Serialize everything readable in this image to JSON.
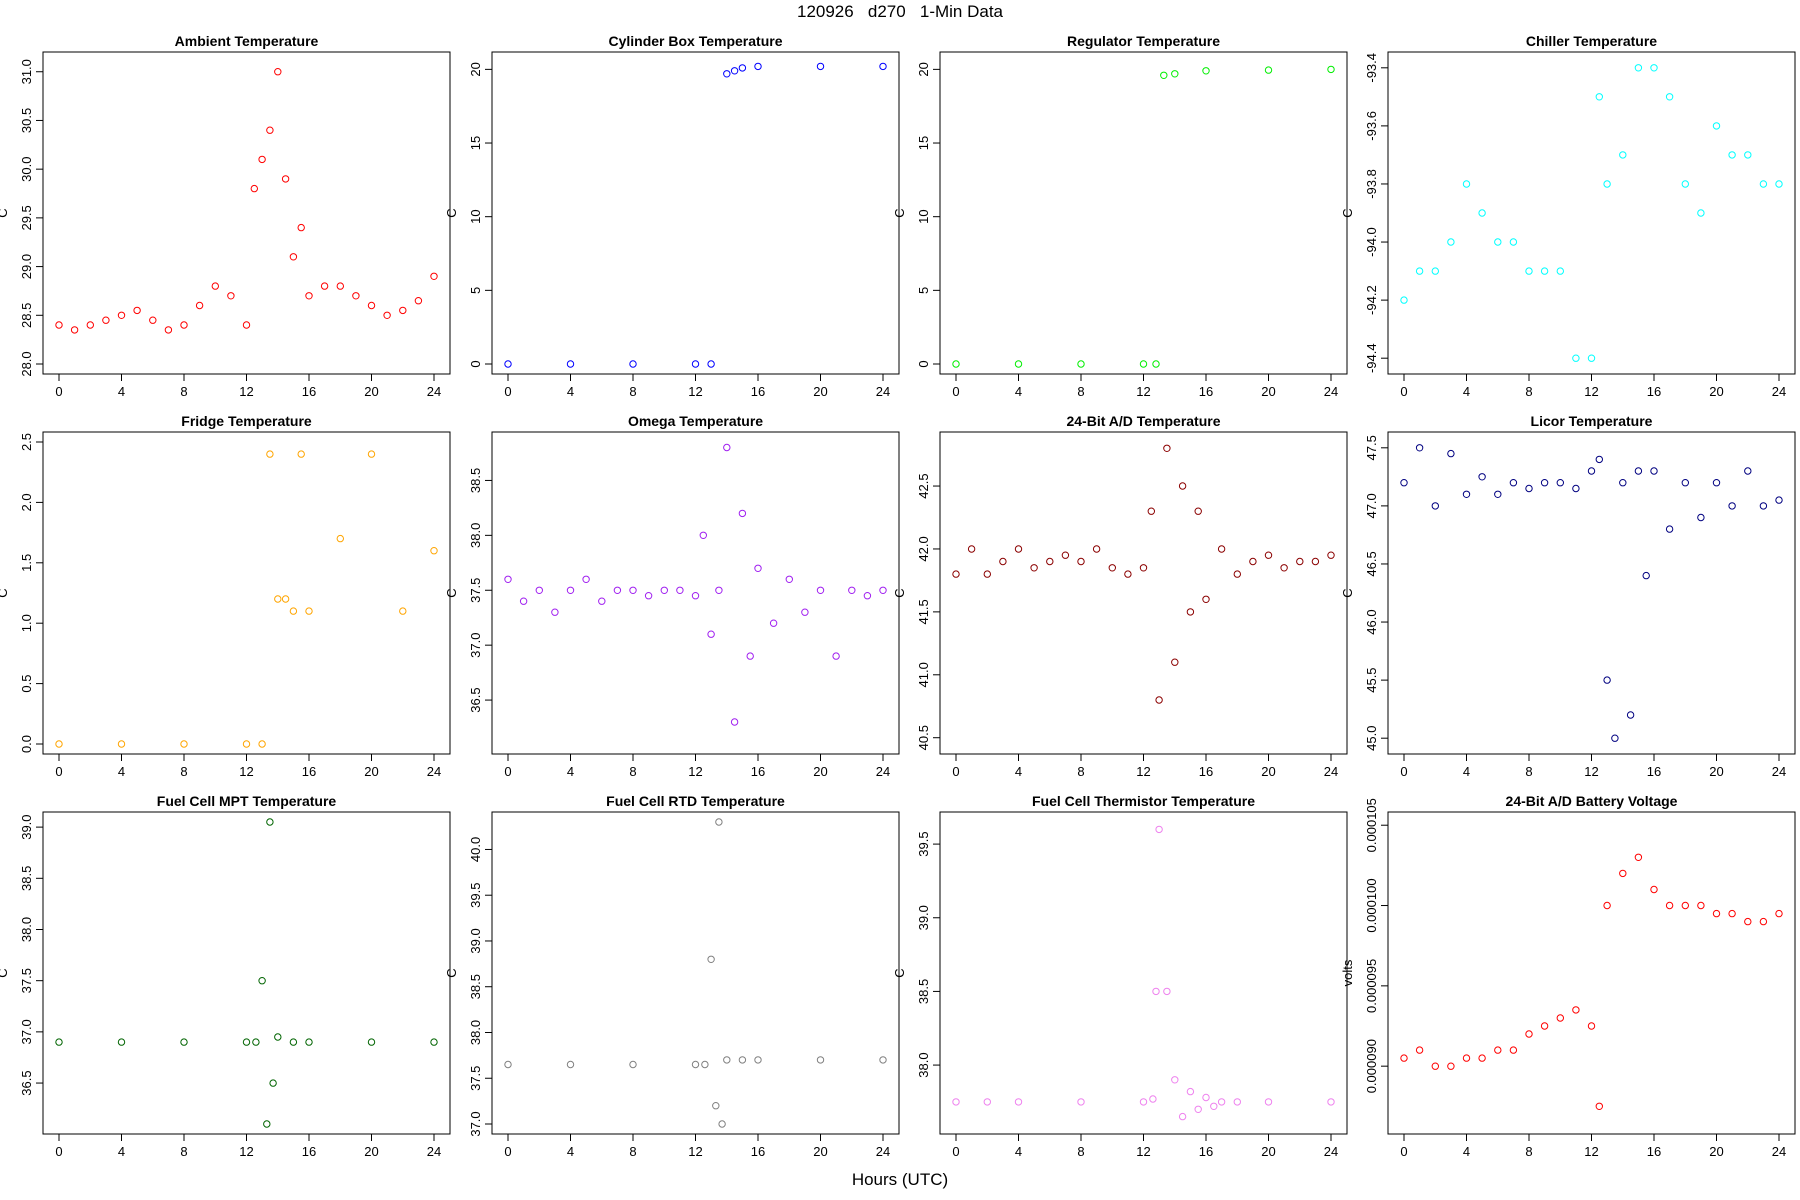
{
  "figure": {
    "title": "120926   d270   1-Min Data",
    "xlabel": "Hours (UTC)"
  },
  "chart_data": [
    {
      "type": "scatter",
      "title": "Ambient Temperature",
      "ylabel": "C",
      "color": "#ff0000",
      "xlim": [
        0,
        24
      ],
      "ylim": [
        28.0,
        31.1
      ],
      "xticks": [
        "0",
        "4",
        "8",
        "12",
        "16",
        "20",
        "24"
      ],
      "yticks": [
        "28.0",
        "28.5",
        "29.0",
        "29.5",
        "30.0",
        "30.5",
        "31.0"
      ],
      "x": [
        0,
        1,
        2,
        3,
        4,
        5,
        6,
        7,
        8,
        9,
        10,
        11,
        12,
        12.5,
        13,
        13.5,
        14,
        14.5,
        15,
        15.5,
        16,
        17,
        18,
        19,
        20,
        21,
        22,
        23,
        24
      ],
      "y": [
        28.4,
        28.35,
        28.4,
        28.45,
        28.5,
        28.55,
        28.45,
        28.35,
        28.4,
        28.6,
        28.8,
        28.7,
        28.4,
        29.8,
        30.1,
        30.4,
        31.0,
        29.9,
        29.1,
        29.4,
        28.7,
        28.8,
        28.8,
        28.7,
        28.6,
        28.5,
        28.55,
        28.65,
        28.9
      ]
    },
    {
      "type": "scatter",
      "title": "Cylinder Box Temperature",
      "ylabel": "C",
      "color": "#0000ff",
      "xlim": [
        0,
        24
      ],
      "ylim": [
        0,
        20.5
      ],
      "xticks": [
        "0",
        "4",
        "8",
        "12",
        "16",
        "20",
        "24"
      ],
      "yticks": [
        "0",
        "5",
        "10",
        "15",
        "20"
      ],
      "x": [
        0,
        4,
        8,
        12,
        13,
        14,
        14.5,
        15,
        16,
        20,
        24
      ],
      "y": [
        0,
        0,
        0,
        0,
        0,
        19.7,
        19.9,
        20.1,
        20.2,
        20.2,
        20.2
      ]
    },
    {
      "type": "scatter",
      "title": "Regulator Temperature",
      "ylabel": "C",
      "color": "#00ee00",
      "xlim": [
        0,
        24
      ],
      "ylim": [
        0,
        20.5
      ],
      "xticks": [
        "0",
        "4",
        "8",
        "12",
        "16",
        "20",
        "24"
      ],
      "yticks": [
        "0",
        "5",
        "10",
        "15",
        "20"
      ],
      "x": [
        0,
        4,
        8,
        12,
        12.8,
        13.3,
        14,
        16,
        20,
        24
      ],
      "y": [
        0,
        0,
        0,
        0,
        0,
        19.6,
        19.7,
        19.9,
        19.95,
        20.0
      ]
    },
    {
      "type": "scatter",
      "title": "Chiller Temperature",
      "ylabel": "C",
      "color": "#00ffff",
      "xlim": [
        0,
        24
      ],
      "ylim": [
        -94.42,
        -93.38
      ],
      "xticks": [
        "0",
        "4",
        "8",
        "12",
        "16",
        "20",
        "24"
      ],
      "yticks": [
        "-94.4",
        "-94.2",
        "-94.0",
        "-93.8",
        "-93.6",
        "-93.4"
      ],
      "x": [
        0,
        1,
        2,
        3,
        4,
        5,
        6,
        7,
        8,
        9,
        10,
        11,
        12,
        12.5,
        13,
        14,
        15,
        16,
        17,
        18,
        19,
        20,
        21,
        22,
        23,
        24
      ],
      "y": [
        -94.2,
        -94.1,
        -94.1,
        -94.0,
        -93.8,
        -93.9,
        -94.0,
        -94.0,
        -94.1,
        -94.1,
        -94.1,
        -94.4,
        -94.4,
        -93.5,
        -93.8,
        -93.7,
        -93.4,
        -93.4,
        -93.5,
        -93.8,
        -93.9,
        -93.6,
        -93.7,
        -93.7,
        -93.8,
        -93.8
      ]
    },
    {
      "type": "scatter",
      "title": "Fridge Temperature",
      "ylabel": "C",
      "color": "#ffa500",
      "xlim": [
        0,
        24
      ],
      "ylim": [
        0,
        2.5
      ],
      "xticks": [
        "0",
        "4",
        "8",
        "12",
        "16",
        "20",
        "24"
      ],
      "yticks": [
        "0.0",
        "0.5",
        "1.0",
        "1.5",
        "2.0",
        "2.5"
      ],
      "x": [
        0,
        4,
        8,
        12,
        13,
        13.5,
        14,
        14.5,
        15,
        15.5,
        16,
        18,
        20,
        22,
        24
      ],
      "y": [
        0,
        0,
        0,
        0,
        0,
        2.4,
        1.2,
        1.2,
        1.1,
        2.4,
        1.1,
        1.7,
        2.4,
        1.1,
        1.6
      ]
    },
    {
      "type": "scatter",
      "title": "Omega Temperature",
      "ylabel": "C",
      "color": "#a020f0",
      "xlim": [
        0,
        24
      ],
      "ylim": [
        36.1,
        38.85
      ],
      "xticks": [
        "0",
        "4",
        "8",
        "12",
        "16",
        "20",
        "24"
      ],
      "yticks": [
        "36.5",
        "37.0",
        "37.5",
        "38.0",
        "38.5"
      ],
      "x": [
        0,
        1,
        2,
        3,
        4,
        5,
        6,
        7,
        8,
        9,
        10,
        11,
        12,
        12.5,
        13,
        13.5,
        14,
        14.5,
        15,
        15.5,
        16,
        17,
        18,
        19,
        20,
        21,
        22,
        23,
        24
      ],
      "y": [
        37.6,
        37.4,
        37.5,
        37.3,
        37.5,
        37.6,
        37.4,
        37.5,
        37.5,
        37.45,
        37.5,
        37.5,
        37.45,
        38.0,
        37.1,
        37.5,
        38.8,
        36.3,
        38.2,
        36.9,
        37.7,
        37.2,
        37.6,
        37.3,
        37.5,
        36.9,
        37.5,
        37.45,
        37.5
      ]
    },
    {
      "type": "scatter",
      "title": "24-Bit A/D Temperature",
      "ylabel": "C",
      "color": "#8b0000",
      "xlim": [
        0,
        24
      ],
      "ylim": [
        40.45,
        42.85
      ],
      "xticks": [
        "0",
        "4",
        "8",
        "12",
        "16",
        "20",
        "24"
      ],
      "yticks": [
        "40.5",
        "41.0",
        "41.5",
        "42.0",
        "42.5"
      ],
      "x": [
        0,
        1,
        2,
        3,
        4,
        5,
        6,
        7,
        8,
        9,
        10,
        11,
        12,
        12.5,
        13,
        13.5,
        14,
        14.5,
        15,
        15.5,
        16,
        17,
        18,
        19,
        20,
        21,
        22,
        23,
        24
      ],
      "y": [
        41.8,
        42.0,
        41.8,
        41.9,
        42.0,
        41.85,
        41.9,
        41.95,
        41.9,
        42.0,
        41.85,
        41.8,
        41.85,
        42.3,
        40.8,
        42.8,
        41.1,
        42.5,
        41.5,
        42.3,
        41.6,
        42.0,
        41.8,
        41.9,
        41.95,
        41.85,
        41.9,
        41.9,
        41.95
      ]
    },
    {
      "type": "scatter",
      "title": "Licor Temperature",
      "ylabel": "C",
      "color": "#000080",
      "xlim": [
        0,
        24
      ],
      "ylim": [
        44.95,
        47.55
      ],
      "xticks": [
        "0",
        "4",
        "8",
        "12",
        "16",
        "20",
        "24"
      ],
      "yticks": [
        "45.0",
        "45.5",
        "46.0",
        "46.5",
        "47.0",
        "47.5"
      ],
      "x": [
        0,
        1,
        2,
        3,
        4,
        5,
        6,
        7,
        8,
        9,
        10,
        11,
        12,
        12.5,
        13,
        13.5,
        14,
        14.5,
        15,
        15.5,
        16,
        17,
        18,
        19,
        20,
        21,
        22,
        23,
        24
      ],
      "y": [
        47.2,
        47.5,
        47.0,
        47.45,
        47.1,
        47.25,
        47.1,
        47.2,
        47.15,
        47.2,
        47.2,
        47.15,
        47.3,
        47.4,
        45.5,
        45.0,
        47.2,
        45.2,
        47.3,
        46.4,
        47.3,
        46.8,
        47.2,
        46.9,
        47.2,
        47.0,
        47.3,
        47.0,
        47.05
      ]
    },
    {
      "type": "scatter",
      "title": "Fuel Cell MPT Temperature",
      "ylabel": "C",
      "color": "#006400",
      "xlim": [
        0,
        24
      ],
      "ylim": [
        36.1,
        39.05
      ],
      "xticks": [
        "0",
        "4",
        "8",
        "12",
        "16",
        "20",
        "24"
      ],
      "yticks": [
        "36.5",
        "37.0",
        "37.5",
        "38.0",
        "38.5",
        "39.0"
      ],
      "x": [
        0,
        4,
        8,
        12,
        12.6,
        13,
        13.3,
        13.5,
        13.7,
        14,
        15,
        16,
        20,
        24
      ],
      "y": [
        36.9,
        36.9,
        36.9,
        36.9,
        36.9,
        37.5,
        36.1,
        39.05,
        36.5,
        36.95,
        36.9,
        36.9,
        36.9,
        36.9
      ]
    },
    {
      "type": "scatter",
      "title": "Fuel Cell RTD Temperature",
      "ylabel": "C",
      "color": "#808080",
      "xlim": [
        0,
        24
      ],
      "ylim": [
        37.0,
        40.3
      ],
      "xticks": [
        "0",
        "4",
        "8",
        "12",
        "16",
        "20",
        "24"
      ],
      "yticks": [
        "37.0",
        "37.5",
        "38.0",
        "38.5",
        "39.0",
        "39.5",
        "40.0"
      ],
      "x": [
        0,
        4,
        8,
        12,
        12.6,
        13,
        13.3,
        13.5,
        13.7,
        14,
        15,
        16,
        20,
        24
      ],
      "y": [
        37.65,
        37.65,
        37.65,
        37.65,
        37.65,
        38.8,
        37.2,
        40.3,
        37.0,
        37.7,
        37.7,
        37.7,
        37.7,
        37.7
      ]
    },
    {
      "type": "scatter",
      "title": "Fuel Cell Thermistor Temperature",
      "ylabel": "C",
      "color": "#ee82ee",
      "xlim": [
        0,
        24
      ],
      "ylim": [
        37.6,
        39.65
      ],
      "xticks": [
        "0",
        "4",
        "8",
        "12",
        "16",
        "20",
        "24"
      ],
      "yticks": [
        "38.0",
        "38.5",
        "39.0",
        "39.5"
      ],
      "x": [
        0,
        2,
        4,
        8,
        12,
        12.6,
        12.8,
        13,
        13.5,
        14,
        14.5,
        15,
        15.5,
        16,
        16.5,
        17,
        18,
        20,
        24
      ],
      "y": [
        37.75,
        37.75,
        37.75,
        37.75,
        37.75,
        37.77,
        38.5,
        39.6,
        38.5,
        37.9,
        37.65,
        37.82,
        37.7,
        37.78,
        37.72,
        37.75,
        37.75,
        37.75,
        37.75
      ]
    },
    {
      "type": "scatter",
      "title": "24-Bit A/D Battery Voltage",
      "ylabel": "volts",
      "color": "#ff0000",
      "xlim": [
        0,
        24
      ],
      "ylim": [
        8.64e-05,
        0.0001052
      ],
      "xticks": [
        "0",
        "4",
        "8",
        "12",
        "16",
        "20",
        "24"
      ],
      "yticks": [
        "0.000090",
        "0.000095",
        "0.000100",
        "0.000105"
      ],
      "x": [
        0,
        1,
        2,
        3,
        4,
        5,
        6,
        7,
        8,
        9,
        10,
        11,
        12,
        12.5,
        13,
        14,
        15,
        16,
        17,
        18,
        19,
        20,
        21,
        22,
        23,
        24
      ],
      "y": [
        9.05e-05,
        9.1e-05,
        9e-05,
        9e-05,
        9.05e-05,
        9.05e-05,
        9.1e-05,
        9.1e-05,
        9.2e-05,
        9.25e-05,
        9.3e-05,
        9.35e-05,
        9.25e-05,
        8.75e-05,
        0.0001,
        0.000102,
        0.000103,
        0.000101,
        0.0001,
        0.0001,
        0.0001,
        9.95e-05,
        9.95e-05,
        9.9e-05,
        9.9e-05,
        9.95e-05
      ]
    }
  ]
}
